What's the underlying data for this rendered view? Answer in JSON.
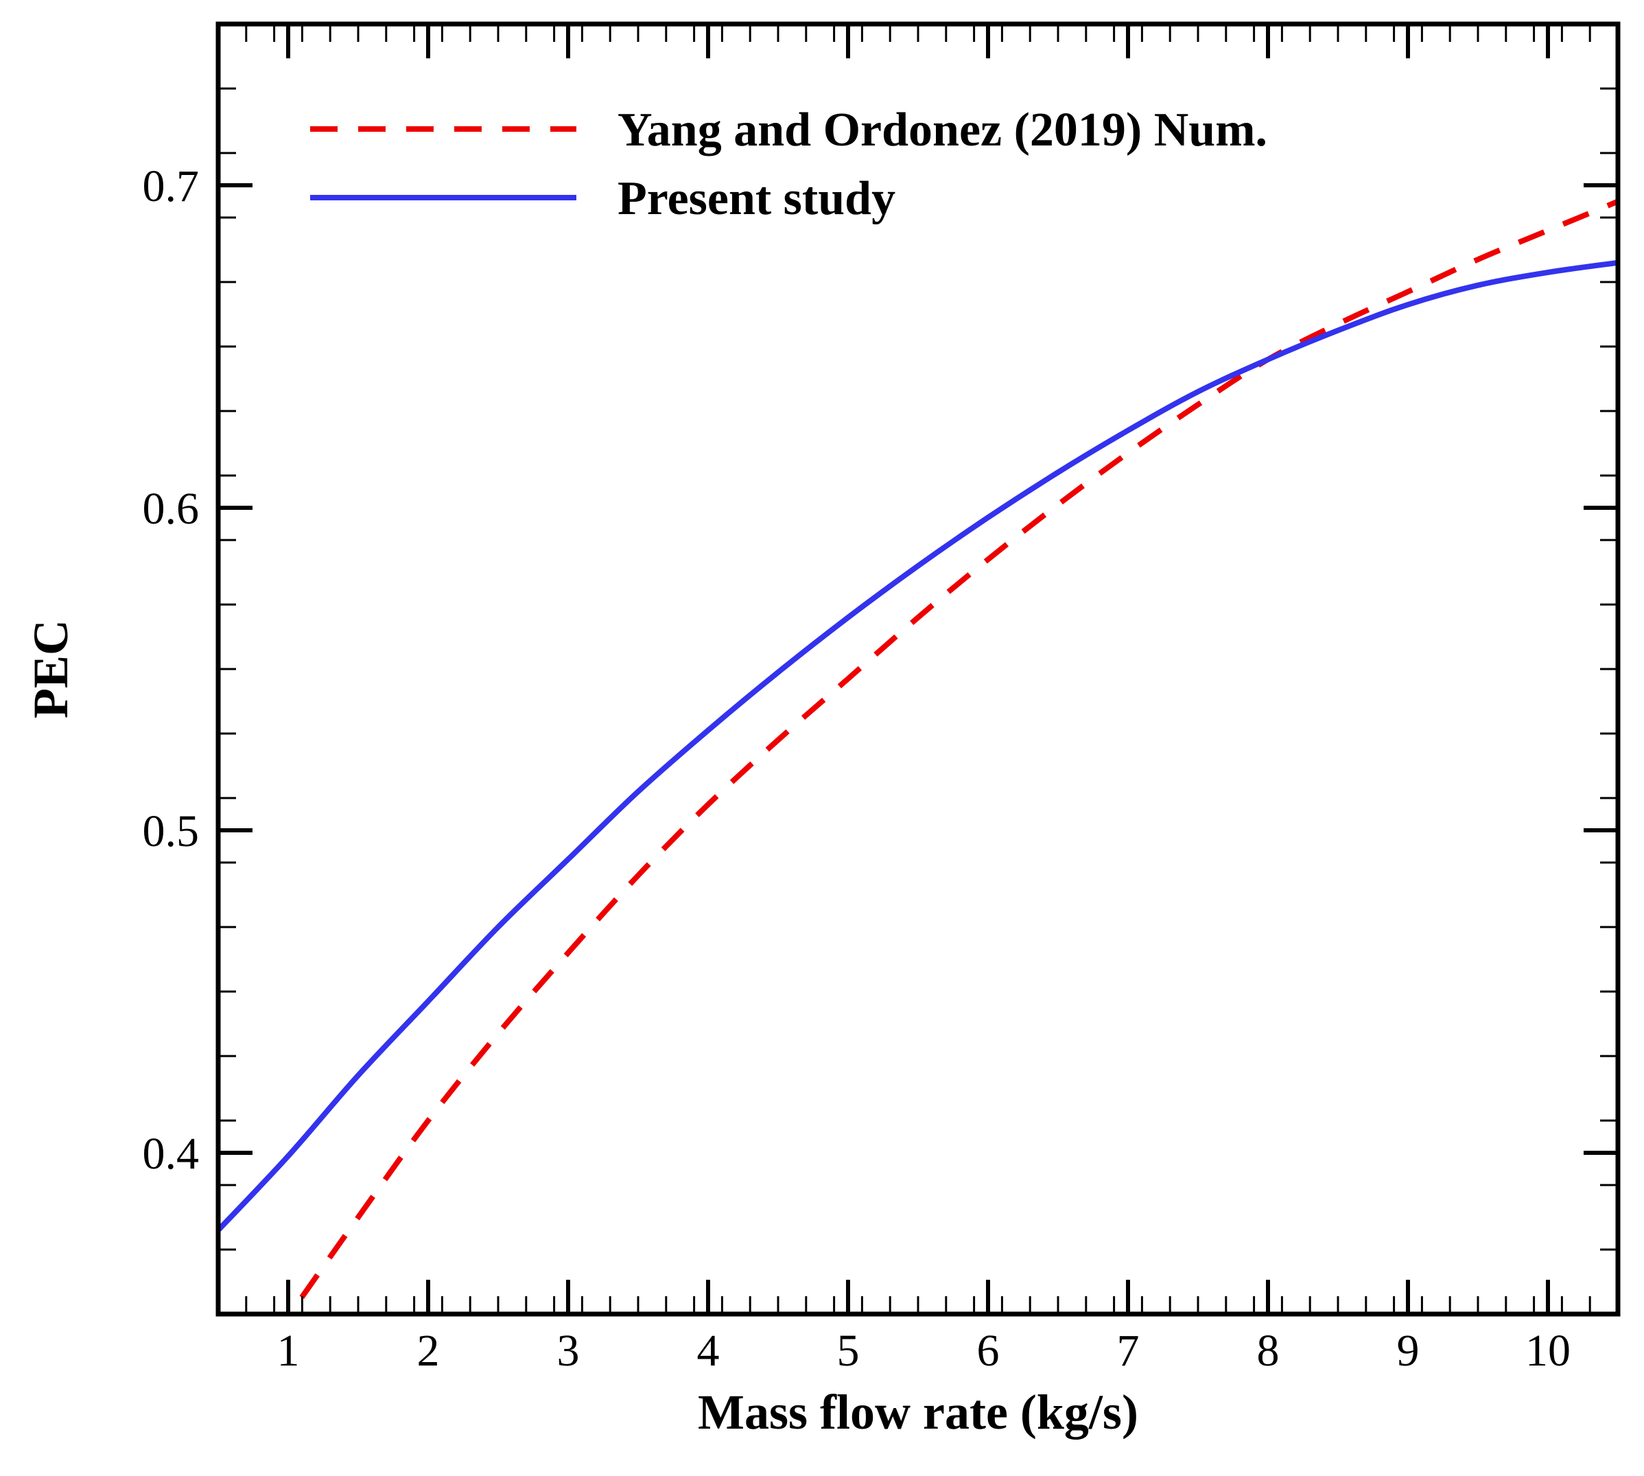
{
  "chart_data": {
    "type": "line",
    "title": "",
    "xlabel": "Mass flow rate (kg/s)",
    "ylabel": "PEC",
    "xlim": [
      0.5,
      10.5
    ],
    "ylim": [
      0.35,
      0.75
    ],
    "x_ticks": [
      1,
      2,
      3,
      4,
      5,
      6,
      7,
      8,
      9,
      10
    ],
    "y_ticks": [
      0.4,
      0.5,
      0.6,
      0.7
    ],
    "x_tick_labels": [
      "1",
      "2",
      "3",
      "4",
      "5",
      "6",
      "7",
      "8",
      "9",
      "10"
    ],
    "y_tick_labels": [
      "0.4",
      "0.5",
      "0.6",
      "0.7"
    ],
    "grid": false,
    "legend_position": "top-left",
    "series": [
      {
        "name": "Yang and Ordonez (2019) Num.",
        "color": "#ee0000",
        "style": "dashed",
        "x": [
          0.9,
          1.5,
          2,
          2.5,
          3,
          3.5,
          4,
          4.5,
          5,
          5.5,
          6,
          6.5,
          7,
          7.5,
          8,
          8.5,
          9,
          9.5,
          10,
          10.5
        ],
        "y": [
          0.343,
          0.38,
          0.41,
          0.437,
          0.462,
          0.486,
          0.508,
          0.528,
          0.547,
          0.566,
          0.584,
          0.601,
          0.617,
          0.632,
          0.646,
          0.657,
          0.667,
          0.677,
          0.686,
          0.695
        ]
      },
      {
        "name": "Present study",
        "color": "#3333ee",
        "style": "solid",
        "x": [
          0.5,
          1,
          1.5,
          2,
          2.5,
          3,
          3.5,
          4,
          4.5,
          5,
          5.5,
          6,
          6.5,
          7,
          7.5,
          8,
          8.5,
          9,
          9.5,
          10,
          10.5
        ],
        "y": [
          0.376,
          0.399,
          0.424,
          0.447,
          0.47,
          0.491,
          0.512,
          0.531,
          0.549,
          0.566,
          0.582,
          0.597,
          0.611,
          0.624,
          0.636,
          0.646,
          0.655,
          0.663,
          0.669,
          0.673,
          0.676
        ]
      }
    ]
  }
}
